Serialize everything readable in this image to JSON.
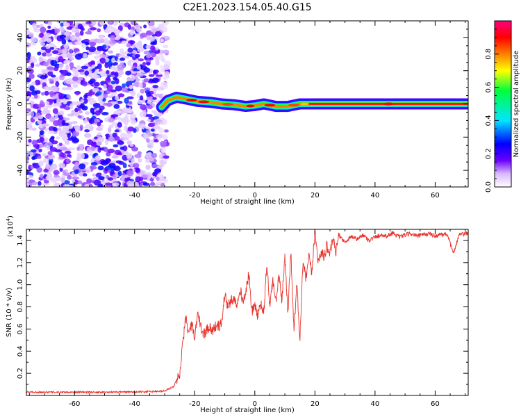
{
  "title": "C2E1.2023.154.05.40.G15",
  "chart_data": [
    {
      "type": "heatmap",
      "xlabel": "Height of straight line (km)",
      "ylabel": "Frequency (Hz)",
      "xlim": [
        -76,
        71
      ],
      "ylim": [
        -50,
        50
      ],
      "xticks": [
        -60,
        -40,
        -20,
        0,
        20,
        40,
        60
      ],
      "yticks": [
        -40,
        -20,
        0,
        20,
        40
      ],
      "noise_region_x": [
        -76,
        -29
      ],
      "noise_amplitude_range": [
        0.05,
        0.3
      ],
      "signal_x_range": [
        -31,
        71
      ],
      "signal_trace": [
        {
          "x": -31,
          "f": -2,
          "amp": 0.35
        },
        {
          "x": -29,
          "f": 2,
          "amp": 0.4
        },
        {
          "x": -26,
          "f": 4,
          "amp": 0.55
        },
        {
          "x": -23,
          "f": 3,
          "amp": 0.9
        },
        {
          "x": -19,
          "f": 1.5,
          "amp": 0.9
        },
        {
          "x": -15,
          "f": 1,
          "amp": 0.6
        },
        {
          "x": -11,
          "f": 0,
          "amp": 0.85
        },
        {
          "x": -7,
          "f": -0.5,
          "amp": 0.55
        },
        {
          "x": -3,
          "f": -1.5,
          "amp": 0.9
        },
        {
          "x": 0,
          "f": -1,
          "amp": 0.5
        },
        {
          "x": 3,
          "f": 0,
          "amp": 0.9
        },
        {
          "x": 7,
          "f": -1.5,
          "amp": 0.8
        },
        {
          "x": 11,
          "f": -1.5,
          "amp": 0.85
        },
        {
          "x": 15,
          "f": 0,
          "amp": 0.75
        },
        {
          "x": 18,
          "f": 0,
          "amp": 0.9
        },
        {
          "x": 71,
          "f": 0,
          "amp": 0.9
        }
      ],
      "colorbar": {
        "label": "Normalized spectral amplitude",
        "range": [
          0.0,
          1.0
        ],
        "ticks": [
          0.0,
          0.2,
          0.4,
          0.6,
          0.8
        ],
        "tick_labels": [
          "0.0",
          "0.2",
          "0.4",
          "0.6",
          "0.8"
        ],
        "colors": [
          "#ffffff",
          "#6a00ff",
          "#0000ff",
          "#00e5ff",
          "#00ff3c",
          "#ffff00",
          "#ff7f00",
          "#ff0000",
          "#ff007f"
        ]
      }
    },
    {
      "type": "line",
      "xlabel": "Height of straight line (km)",
      "ylabel": "SNR (10 * v/v)",
      "y_multiplier": "(x10",
      "y_multiplier_exp": "4",
      "y_multiplier_close": ")",
      "xlim": [
        -76,
        71
      ],
      "ylim": [
        0,
        1.5
      ],
      "xticks": [
        -60,
        -40,
        -20,
        0,
        20,
        40,
        60
      ],
      "yticks": [
        0.2,
        0.4,
        0.6,
        0.8,
        1.0,
        1.2,
        1.4
      ],
      "ytick_labels": [
        "0.2",
        "0.4",
        "0.6",
        "0.8",
        "1.0",
        "1.2",
        "1.4"
      ],
      "line_color": "#e8302a",
      "series": [
        {
          "x": [
            -76,
            -60,
            -40,
            -30,
            -27,
            -25,
            -24,
            -23,
            -22,
            -21,
            -20,
            -19,
            -18,
            -17,
            -16,
            -15,
            -14,
            -13,
            -12,
            -11,
            -10,
            -9,
            -8,
            -7,
            -6,
            -5,
            -4,
            -3,
            -2,
            -1,
            0,
            1,
            2,
            3,
            4,
            5,
            6,
            7,
            8,
            9,
            10,
            11,
            12,
            13,
            14,
            15,
            16,
            17,
            18,
            19,
            20,
            21,
            22,
            23,
            24,
            25,
            26,
            27,
            28,
            30,
            32,
            34,
            36,
            38,
            40,
            42,
            44,
            46,
            48,
            50,
            52,
            54,
            56,
            58,
            60,
            62,
            64,
            66,
            68,
            70,
            71
          ],
          "y": [
            0.03,
            0.03,
            0.03,
            0.04,
            0.08,
            0.2,
            0.45,
            0.72,
            0.55,
            0.65,
            0.5,
            0.75,
            0.62,
            0.55,
            0.6,
            0.62,
            0.58,
            0.63,
            0.62,
            0.66,
            0.92,
            0.8,
            0.85,
            0.88,
            0.82,
            0.98,
            0.85,
            0.92,
            1.1,
            0.75,
            0.82,
            0.72,
            0.82,
            0.74,
            1.2,
            0.8,
            1.05,
            0.82,
            1.1,
            0.84,
            1.25,
            0.75,
            1.3,
            0.6,
            1.0,
            0.5,
            1.2,
            1.05,
            1.25,
            1.1,
            1.5,
            1.2,
            1.3,
            1.25,
            1.35,
            1.28,
            1.4,
            1.3,
            1.45,
            1.38,
            1.44,
            1.41,
            1.45,
            1.4,
            1.43,
            1.45,
            1.44,
            1.47,
            1.43,
            1.45,
            1.46,
            1.44,
            1.45,
            1.46,
            1.44,
            1.45,
            1.46,
            1.28,
            1.45,
            1.46,
            1.46
          ]
        }
      ]
    }
  ]
}
